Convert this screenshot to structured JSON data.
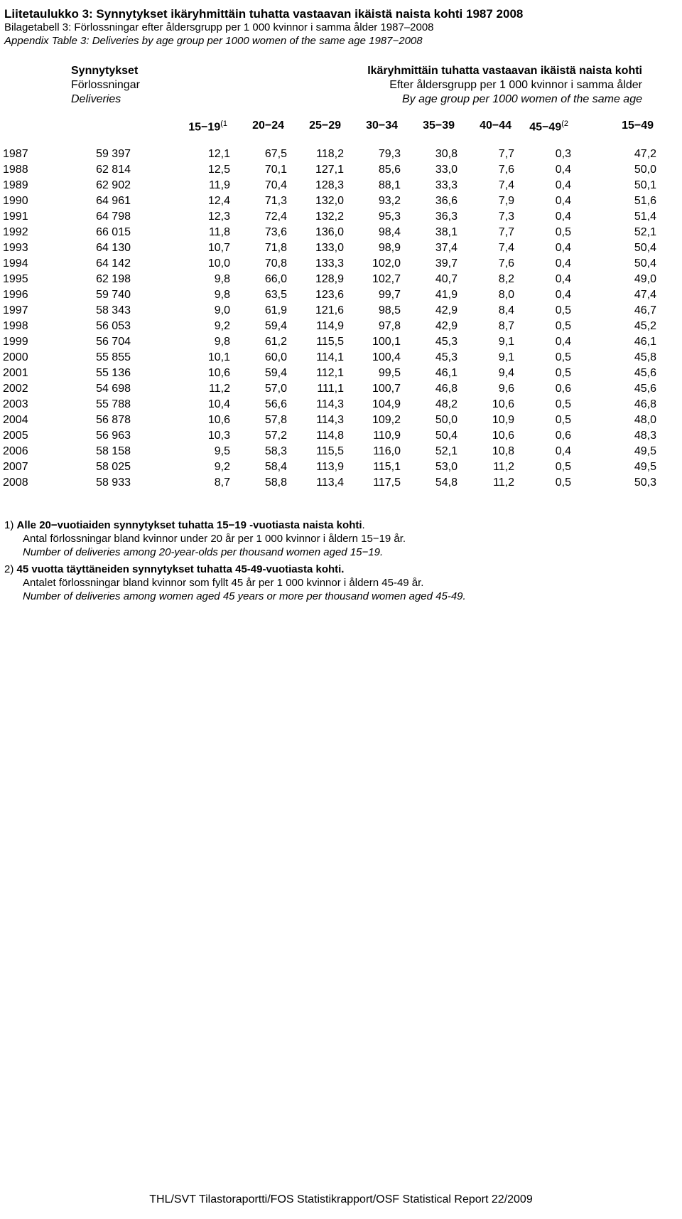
{
  "titles": {
    "fi": "Liitetaulukko 3: Synnytykset ikäryhmittäin tuhatta vastaavan ikäistä naista kohti 1987 2008",
    "sv": "Bilagetabell 3: Förlossningar efter åldersgrupp per 1 000 kvinnor i samma ålder 1987–2008",
    "en": "Appendix Table 3: Deliveries by age group per 1000 women of the same age 1987−2008"
  },
  "subhead": {
    "left_fi": "Synnytykset",
    "left_sv": "Förlossningar",
    "left_en": "Deliveries",
    "right_fi": "Ikäryhmittäin tuhatta vastaavan ikäistä naista kohti",
    "right_sv": "Efter åldersgrupp per 1 000 kvinnor i samma ålder",
    "right_en": "By age group per 1000 women of the same age"
  },
  "col_labels": [
    "15−19",
    "20−24",
    "25−29",
    "30−34",
    "35−39",
    "40−44",
    "45−49",
    "15−49"
  ],
  "sup1": "(1",
  "sup2": "(2",
  "table": {
    "rows": [
      {
        "year": "1987",
        "del": "59 397",
        "v": [
          "12,1",
          "67,5",
          "118,2",
          "79,3",
          "30,8",
          "7,7",
          "0,3",
          "47,2"
        ]
      },
      {
        "year": "1988",
        "del": "62 814",
        "v": [
          "12,5",
          "70,1",
          "127,1",
          "85,6",
          "33,0",
          "7,6",
          "0,4",
          "50,0"
        ]
      },
      {
        "year": "1989",
        "del": "62 902",
        "v": [
          "11,9",
          "70,4",
          "128,3",
          "88,1",
          "33,3",
          "7,4",
          "0,4",
          "50,1"
        ]
      },
      {
        "year": "1990",
        "del": "64 961",
        "v": [
          "12,4",
          "71,3",
          "132,0",
          "93,2",
          "36,6",
          "7,9",
          "0,4",
          "51,6"
        ]
      },
      {
        "year": "1991",
        "del": "64 798",
        "v": [
          "12,3",
          "72,4",
          "132,2",
          "95,3",
          "36,3",
          "7,3",
          "0,4",
          "51,4"
        ]
      },
      {
        "year": "1992",
        "del": "66 015",
        "v": [
          "11,8",
          "73,6",
          "136,0",
          "98,4",
          "38,1",
          "7,7",
          "0,5",
          "52,1"
        ]
      },
      {
        "year": "1993",
        "del": "64 130",
        "v": [
          "10,7",
          "71,8",
          "133,0",
          "98,9",
          "37,4",
          "7,4",
          "0,4",
          "50,4"
        ]
      },
      {
        "year": "1994",
        "del": "64 142",
        "v": [
          "10,0",
          "70,8",
          "133,3",
          "102,0",
          "39,7",
          "7,6",
          "0,4",
          "50,4"
        ]
      },
      {
        "year": "1995",
        "del": "62 198",
        "v": [
          "9,8",
          "66,0",
          "128,9",
          "102,7",
          "40,7",
          "8,2",
          "0,4",
          "49,0"
        ]
      },
      {
        "year": "1996",
        "del": "59 740",
        "v": [
          "9,8",
          "63,5",
          "123,6",
          "99,7",
          "41,9",
          "8,0",
          "0,4",
          "47,4"
        ]
      },
      {
        "year": "1997",
        "del": "58 343",
        "v": [
          "9,0",
          "61,9",
          "121,6",
          "98,5",
          "42,9",
          "8,4",
          "0,5",
          "46,7"
        ]
      },
      {
        "year": "1998",
        "del": "56 053",
        "v": [
          "9,2",
          "59,4",
          "114,9",
          "97,8",
          "42,9",
          "8,7",
          "0,5",
          "45,2"
        ]
      },
      {
        "year": "1999",
        "del": "56 704",
        "v": [
          "9,8",
          "61,2",
          "115,5",
          "100,1",
          "45,3",
          "9,1",
          "0,4",
          "46,1"
        ]
      },
      {
        "year": "2000",
        "del": "55 855",
        "v": [
          "10,1",
          "60,0",
          "114,1",
          "100,4",
          "45,3",
          "9,1",
          "0,5",
          "45,8"
        ]
      },
      {
        "year": "2001",
        "del": "55 136",
        "v": [
          "10,6",
          "59,4",
          "112,1",
          "99,5",
          "46,1",
          "9,4",
          "0,5",
          "45,6"
        ]
      },
      {
        "year": "2002",
        "del": "54 698",
        "v": [
          "11,2",
          "57,0",
          "111,1",
          "100,7",
          "46,8",
          "9,6",
          "0,6",
          "45,6"
        ]
      },
      {
        "year": "2003",
        "del": "55 788",
        "v": [
          "10,4",
          "56,6",
          "114,3",
          "104,9",
          "48,2",
          "10,6",
          "0,5",
          "46,8"
        ]
      },
      {
        "year": "2004",
        "del": "56 878",
        "v": [
          "10,6",
          "57,8",
          "114,3",
          "109,2",
          "50,0",
          "10,9",
          "0,5",
          "48,0"
        ]
      },
      {
        "year": "2005",
        "del": "56 963",
        "v": [
          "10,3",
          "57,2",
          "114,8",
          "110,9",
          "50,4",
          "10,6",
          "0,6",
          "48,3"
        ]
      },
      {
        "year": "2006",
        "del": "58 158",
        "v": [
          "9,5",
          "58,3",
          "115,5",
          "116,0",
          "52,1",
          "10,8",
          "0,4",
          "49,5"
        ]
      },
      {
        "year": "2007",
        "del": "58 025",
        "v": [
          "9,2",
          "58,4",
          "113,9",
          "115,1",
          "53,0",
          "11,2",
          "0,5",
          "49,5"
        ]
      },
      {
        "year": "2008",
        "del": "58 933",
        "v": [
          "8,7",
          "58,8",
          "113,4",
          "117,5",
          "54,8",
          "11,2",
          "0,5",
          "50,3"
        ]
      }
    ]
  },
  "footnotes": {
    "n1_num": "1)  ",
    "n1_fi": "Alle 20−vuotiaiden synnytykset tuhatta 15−19 -vuotiasta naista kohti",
    "n1_dot": ".",
    "n1_sv": "Antal förlossningar bland kvinnor under 20 år per 1 000 kvinnor i åldern 15−19 år.",
    "n1_en": "Number of deliveries among 20-year-olds per thousand women aged 15−19.",
    "n2_num": "2) ",
    "n2_fi": "45 vuotta täyttäneiden synnytykset tuhatta 45-49-vuotiasta kohti.",
    "n2_sv": "Antalet förlossningar bland kvinnor som fyllt 45 år per 1 000 kvinnor i åldern 45-49 år.",
    "n2_en": "Number of deliveries among women aged 45 years or more per thousand women aged 45-49."
  },
  "footer": "THL/SVT Tilastoraportti/FOS Statistikrapport/OSF Statistical Report 22/2009"
}
